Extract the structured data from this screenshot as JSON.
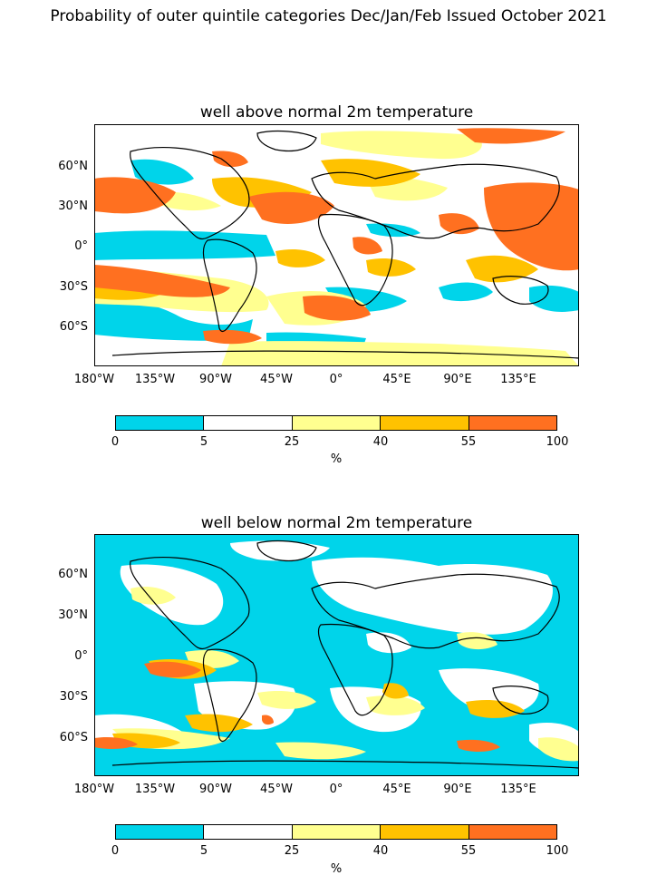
{
  "suptitle": "Probability of outer quintile categories Dec/Jan/Feb Issued October 2021",
  "panels": [
    {
      "title": "well above normal 2m temperature"
    },
    {
      "title": "well below normal 2m temperature"
    }
  ],
  "lat_ticks": [
    "60°N",
    "30°N",
    "0°",
    "30°S",
    "60°S"
  ],
  "lon_ticks": [
    "180°W",
    "135°W",
    "90°W",
    "45°W",
    "0°",
    "45°E",
    "90°E",
    "135°E"
  ],
  "colorbar": {
    "labels": [
      "0",
      "5",
      "25",
      "40",
      "55",
      "100"
    ],
    "unit": "%",
    "colors": [
      "#00d4ea",
      "#ffffff",
      "#ffff90",
      "#ffc200",
      "#ff7020"
    ]
  },
  "colors": {
    "land_outline": "#000000"
  }
}
